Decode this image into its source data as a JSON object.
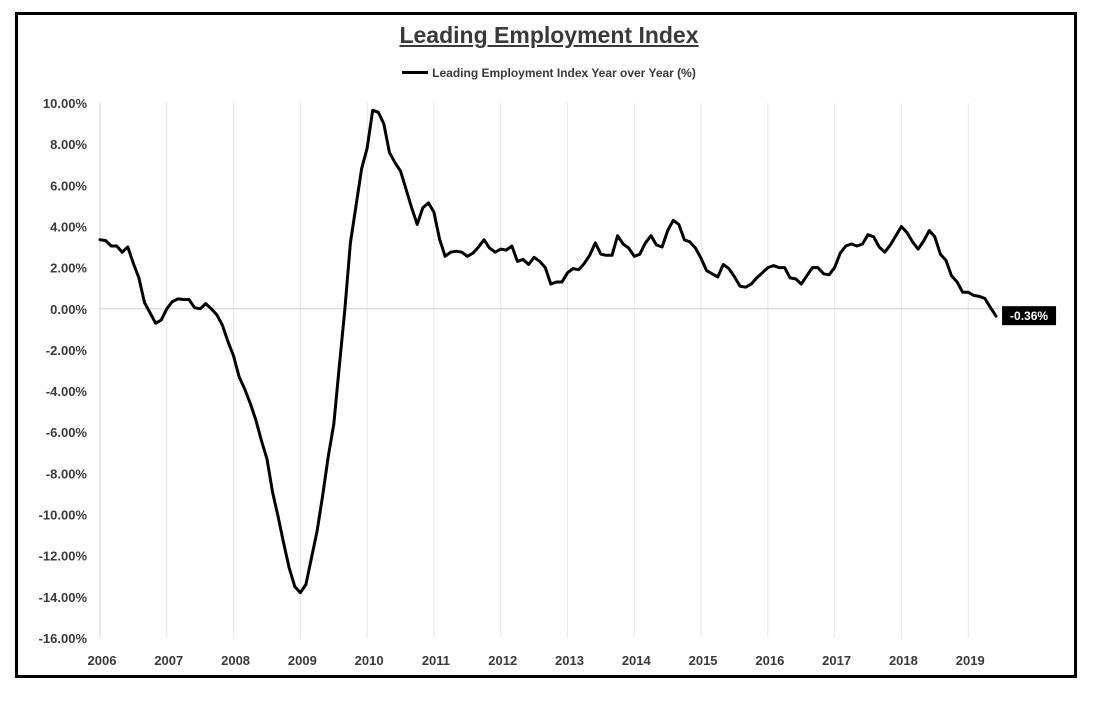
{
  "chart_data": {
    "type": "line",
    "title": "Leading Employment Index",
    "xlabel": "",
    "ylabel": "",
    "legend": {
      "position": "top",
      "entries": [
        "Leading Employment Index Year over Year (%)"
      ]
    },
    "ylim": [
      -16,
      10
    ],
    "y_ticks": [
      10,
      8,
      6,
      4,
      2,
      0,
      -2,
      -4,
      -6,
      -8,
      -10,
      -12,
      -14,
      -16
    ],
    "y_tick_labels": [
      "10.00%",
      "8.00%",
      "6.00%",
      "4.00%",
      "2.00%",
      "0.00%",
      "-2.00%",
      "-4.00%",
      "-6.00%",
      "-8.00%",
      "-10.00%",
      "-12.00%",
      "-14.00%",
      "-16.00%"
    ],
    "x_ticks": [
      2006,
      2007,
      2008,
      2009,
      2010,
      2011,
      2012,
      2013,
      2014,
      2015,
      2016,
      2017,
      2018,
      2019
    ],
    "x_tick_labels": [
      "2006",
      "2007",
      "2008",
      "2009",
      "2010",
      "2011",
      "2012",
      "2013",
      "2014",
      "2015",
      "2016",
      "2017",
      "2018",
      "2019"
    ],
    "xlim": [
      2006,
      2020
    ],
    "grid": {
      "vertical": true,
      "horizontal": false
    },
    "color": "#000000",
    "end_label": "-0.36%",
    "series": [
      {
        "name": "Leading Employment Index Year over Year (%)",
        "points": [
          [
            2006.0,
            3.35
          ],
          [
            2006.083,
            3.32
          ],
          [
            2006.167,
            3.05
          ],
          [
            2006.25,
            3.05
          ],
          [
            2006.333,
            2.75
          ],
          [
            2006.417,
            3.0
          ],
          [
            2006.5,
            2.2
          ],
          [
            2006.583,
            1.5
          ],
          [
            2006.667,
            0.3
          ],
          [
            2006.75,
            -0.2
          ],
          [
            2006.833,
            -0.7
          ],
          [
            2006.917,
            -0.55
          ],
          [
            2007.0,
            0.0
          ],
          [
            2007.083,
            0.35
          ],
          [
            2007.167,
            0.48
          ],
          [
            2007.25,
            0.45
          ],
          [
            2007.333,
            0.45
          ],
          [
            2007.417,
            0.05
          ],
          [
            2007.5,
            0.0
          ],
          [
            2007.583,
            0.25
          ],
          [
            2007.667,
            0.0
          ],
          [
            2007.75,
            -0.3
          ],
          [
            2007.833,
            -0.8
          ],
          [
            2007.917,
            -1.6
          ],
          [
            2008.0,
            -2.3
          ],
          [
            2008.083,
            -3.3
          ],
          [
            2008.167,
            -3.9
          ],
          [
            2008.25,
            -4.6
          ],
          [
            2008.333,
            -5.4
          ],
          [
            2008.417,
            -6.4
          ],
          [
            2008.5,
            -7.3
          ],
          [
            2008.583,
            -8.9
          ],
          [
            2008.667,
            -10.1
          ],
          [
            2008.75,
            -11.4
          ],
          [
            2008.833,
            -12.6
          ],
          [
            2008.917,
            -13.5
          ],
          [
            2009.0,
            -13.8
          ],
          [
            2009.083,
            -13.4
          ],
          [
            2009.167,
            -12.1
          ],
          [
            2009.25,
            -10.8
          ],
          [
            2009.333,
            -9.1
          ],
          [
            2009.417,
            -7.2
          ],
          [
            2009.5,
            -5.6
          ],
          [
            2009.583,
            -2.8
          ],
          [
            2009.667,
            0.0
          ],
          [
            2009.75,
            3.2
          ],
          [
            2009.833,
            5.0
          ],
          [
            2009.917,
            6.8
          ],
          [
            2010.0,
            7.8
          ],
          [
            2010.083,
            9.65
          ],
          [
            2010.167,
            9.55
          ],
          [
            2010.25,
            9.0
          ],
          [
            2010.333,
            7.6
          ],
          [
            2010.417,
            7.1
          ],
          [
            2010.5,
            6.7
          ],
          [
            2010.583,
            5.8
          ],
          [
            2010.667,
            4.9
          ],
          [
            2010.75,
            4.1
          ],
          [
            2010.833,
            4.9
          ],
          [
            2010.917,
            5.15
          ],
          [
            2011.0,
            4.7
          ],
          [
            2011.083,
            3.4
          ],
          [
            2011.167,
            2.55
          ],
          [
            2011.25,
            2.75
          ],
          [
            2011.333,
            2.8
          ],
          [
            2011.417,
            2.75
          ],
          [
            2011.5,
            2.55
          ],
          [
            2011.583,
            2.7
          ],
          [
            2011.667,
            3.0
          ],
          [
            2011.75,
            3.35
          ],
          [
            2011.833,
            2.95
          ],
          [
            2011.917,
            2.75
          ],
          [
            2012.0,
            2.9
          ],
          [
            2012.083,
            2.85
          ],
          [
            2012.167,
            3.05
          ],
          [
            2012.25,
            2.3
          ],
          [
            2012.333,
            2.4
          ],
          [
            2012.417,
            2.15
          ],
          [
            2012.5,
            2.5
          ],
          [
            2012.583,
            2.3
          ],
          [
            2012.667,
            2.0
          ],
          [
            2012.75,
            1.2
          ],
          [
            2012.833,
            1.3
          ],
          [
            2012.917,
            1.3
          ],
          [
            2013.0,
            1.75
          ],
          [
            2013.083,
            1.95
          ],
          [
            2013.167,
            1.9
          ],
          [
            2013.25,
            2.2
          ],
          [
            2013.333,
            2.6
          ],
          [
            2013.417,
            3.2
          ],
          [
            2013.5,
            2.65
          ],
          [
            2013.583,
            2.6
          ],
          [
            2013.667,
            2.6
          ],
          [
            2013.75,
            3.55
          ],
          [
            2013.833,
            3.15
          ],
          [
            2013.917,
            2.95
          ],
          [
            2014.0,
            2.55
          ],
          [
            2014.083,
            2.65
          ],
          [
            2014.167,
            3.2
          ],
          [
            2014.25,
            3.55
          ],
          [
            2014.333,
            3.1
          ],
          [
            2014.417,
            3.0
          ],
          [
            2014.5,
            3.8
          ],
          [
            2014.583,
            4.3
          ],
          [
            2014.667,
            4.1
          ],
          [
            2014.75,
            3.35
          ],
          [
            2014.833,
            3.25
          ],
          [
            2014.917,
            2.95
          ],
          [
            2015.0,
            2.45
          ],
          [
            2015.083,
            1.85
          ],
          [
            2015.167,
            1.7
          ],
          [
            2015.25,
            1.55
          ],
          [
            2015.333,
            2.15
          ],
          [
            2015.417,
            1.95
          ],
          [
            2015.5,
            1.55
          ],
          [
            2015.583,
            1.1
          ],
          [
            2015.667,
            1.05
          ],
          [
            2015.75,
            1.2
          ],
          [
            2015.833,
            1.5
          ],
          [
            2015.917,
            1.75
          ],
          [
            2016.0,
            2.0
          ],
          [
            2016.083,
            2.1
          ],
          [
            2016.167,
            2.0
          ],
          [
            2016.25,
            2.0
          ],
          [
            2016.333,
            1.5
          ],
          [
            2016.417,
            1.45
          ],
          [
            2016.5,
            1.2
          ],
          [
            2016.583,
            1.6
          ],
          [
            2016.667,
            2.0
          ],
          [
            2016.75,
            2.0
          ],
          [
            2016.833,
            1.7
          ],
          [
            2016.917,
            1.65
          ],
          [
            2017.0,
            2.0
          ],
          [
            2017.083,
            2.7
          ],
          [
            2017.167,
            3.05
          ],
          [
            2017.25,
            3.15
          ],
          [
            2017.333,
            3.05
          ],
          [
            2017.417,
            3.15
          ],
          [
            2017.5,
            3.6
          ],
          [
            2017.583,
            3.5
          ],
          [
            2017.667,
            3.0
          ],
          [
            2017.75,
            2.75
          ],
          [
            2017.833,
            3.1
          ],
          [
            2017.917,
            3.55
          ],
          [
            2018.0,
            4.0
          ],
          [
            2018.083,
            3.7
          ],
          [
            2018.167,
            3.25
          ],
          [
            2018.25,
            2.9
          ],
          [
            2018.333,
            3.3
          ],
          [
            2018.417,
            3.8
          ],
          [
            2018.5,
            3.5
          ],
          [
            2018.583,
            2.65
          ],
          [
            2018.667,
            2.35
          ],
          [
            2018.75,
            1.6
          ],
          [
            2018.833,
            1.3
          ],
          [
            2018.917,
            0.8
          ],
          [
            2019.0,
            0.8
          ],
          [
            2019.083,
            0.65
          ],
          [
            2019.167,
            0.6
          ],
          [
            2019.25,
            0.5
          ],
          [
            2019.333,
            0.05
          ],
          [
            2019.417,
            -0.36
          ]
        ]
      }
    ]
  }
}
